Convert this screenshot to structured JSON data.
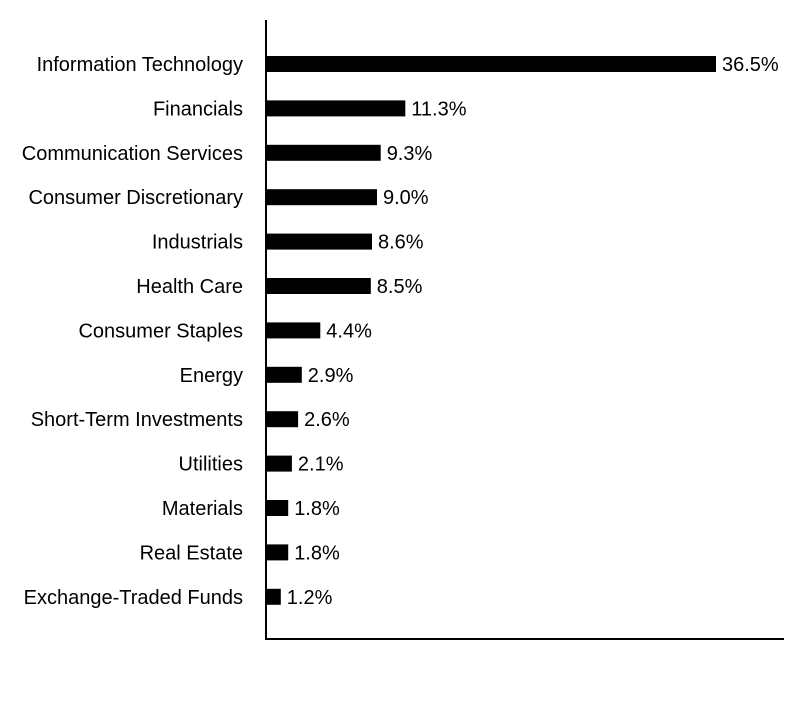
{
  "chart_data": {
    "type": "bar",
    "orientation": "horizontal",
    "categories": [
      "Information Technology",
      "Financials",
      "Communication Services",
      "Consumer Discretionary",
      "Industrials",
      "Health Care",
      "Consumer Staples",
      "Energy",
      "Short-Term Investments",
      "Utilities",
      "Materials",
      "Real Estate",
      "Exchange-Traded Funds"
    ],
    "values": [
      36.5,
      11.3,
      9.3,
      9.0,
      8.6,
      8.5,
      4.4,
      2.9,
      2.6,
      2.1,
      1.8,
      1.8,
      1.2
    ],
    "value_labels": [
      "36.5%",
      "11.3%",
      "9.3%",
      "9.0%",
      "8.6%",
      "8.5%",
      "4.4%",
      "2.9%",
      "2.6%",
      "2.1%",
      "1.8%",
      "1.8%",
      "1.2%"
    ],
    "xlim": [
      0,
      42
    ],
    "bar_color": "#000000",
    "axis_color": "#000000",
    "grid": false,
    "legend": "none",
    "title": "",
    "xlabel": "",
    "ylabel": ""
  }
}
